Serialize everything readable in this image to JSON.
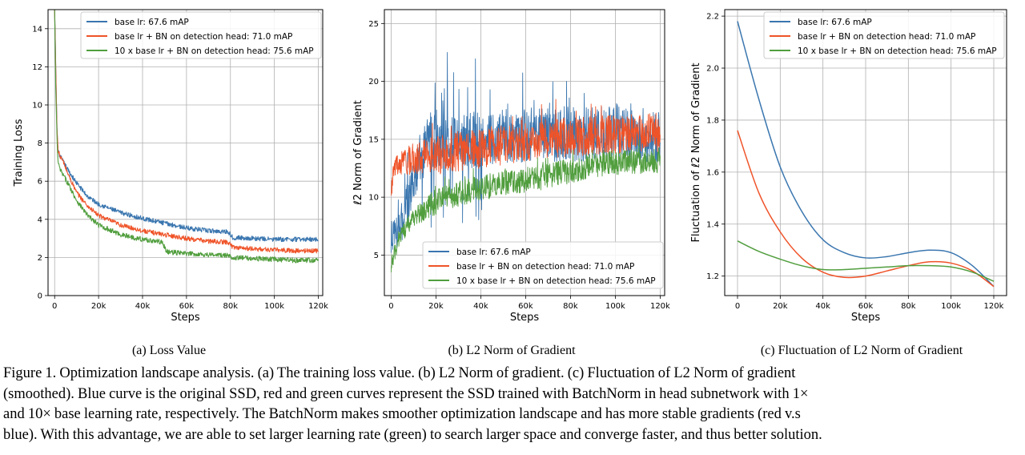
{
  "colors": {
    "blue": "#3a76af",
    "red": "#ef5328",
    "green": "#519e3e",
    "grid": "#b0b0b0"
  },
  "chart_data": [
    {
      "type": "line",
      "subcaption": "(a)  Loss Value",
      "xlabel": "Steps",
      "ylabel": "Training  Loss",
      "xlim": [
        -3000,
        122000
      ],
      "ylim": [
        0,
        15
      ],
      "xticks": [
        0,
        20000,
        40000,
        60000,
        80000,
        100000,
        120000
      ],
      "xtick_labels": [
        "0",
        "20k",
        "40k",
        "60k",
        "80k",
        "100k",
        "120k"
      ],
      "yticks": [
        0,
        2,
        4,
        6,
        8,
        10,
        12,
        14
      ],
      "ytick_labels": [
        "0",
        "2",
        "4",
        "6",
        "8",
        "10",
        "12",
        "14"
      ],
      "grid": true,
      "legend_position": "top-right",
      "series": [
        {
          "name": "base lr:  67.6 mAP",
          "color": "blue",
          "x": [
            0,
            500,
            1000,
            1500,
            2500,
            4000,
            6000,
            10000,
            15000,
            20000,
            30000,
            40000,
            50000,
            60000,
            70000,
            79000,
            81000,
            90000,
            100000,
            110000,
            120000
          ],
          "y": [
            15,
            12,
            9,
            7.6,
            7.3,
            7.0,
            6.6,
            5.9,
            5.2,
            4.8,
            4.35,
            4.05,
            3.8,
            3.55,
            3.4,
            3.35,
            3.05,
            3.0,
            2.95,
            2.95,
            2.95
          ],
          "noise": 0.12
        },
        {
          "name": "base lr + BN on detection head:  71.0 mAP",
          "color": "red",
          "x": [
            0,
            500,
            1000,
            1500,
            2500,
            4000,
            6000,
            10000,
            15000,
            20000,
            30000,
            40000,
            50000,
            60000,
            70000,
            79000,
            81000,
            90000,
            100000,
            110000,
            120000
          ],
          "y": [
            15,
            12,
            9,
            7.6,
            7.3,
            7.0,
            6.4,
            5.4,
            4.7,
            4.2,
            3.7,
            3.4,
            3.2,
            3.0,
            2.85,
            2.8,
            2.55,
            2.45,
            2.4,
            2.35,
            2.35
          ],
          "noise": 0.12
        },
        {
          "name": "10 x base lr + BN on detection head:  75.6 mAP",
          "color": "green",
          "x": [
            0,
            500,
            1000,
            1500,
            2500,
            4000,
            6000,
            10000,
            15000,
            20000,
            30000,
            40000,
            49000,
            51000,
            60000,
            70000,
            79000,
            81000,
            90000,
            100000,
            110000,
            120000
          ],
          "y": [
            15,
            11,
            8.5,
            7.0,
            6.6,
            6.3,
            5.9,
            5.0,
            4.2,
            3.7,
            3.2,
            2.95,
            2.8,
            2.3,
            2.2,
            2.15,
            2.1,
            2.0,
            1.95,
            1.9,
            1.85,
            1.85
          ],
          "noise": 0.13
        }
      ]
    },
    {
      "type": "line",
      "subcaption": "(b)  L2 Norm of Gradient",
      "xlabel": "Steps",
      "ylabel": "ℓ2  Norm  of  Gradient",
      "xlim": [
        -3000,
        122000
      ],
      "ylim": [
        1.5,
        26.2
      ],
      "xticks": [
        0,
        20000,
        40000,
        60000,
        80000,
        100000,
        120000
      ],
      "xtick_labels": [
        "0",
        "20k",
        "40k",
        "60k",
        "80k",
        "100k",
        "120k"
      ],
      "yticks": [
        5,
        10,
        15,
        20,
        25
      ],
      "ytick_labels": [
        "5",
        "10",
        "15",
        "20",
        "25"
      ],
      "grid": true,
      "legend_position": "bottom-right",
      "series": [
        {
          "name": "base lr:  67.6 mAP",
          "color": "blue",
          "x": [
            0,
            2000,
            5000,
            8000,
            12000,
            16000,
            20000,
            30000,
            40000,
            50000,
            60000,
            70000,
            80000,
            90000,
            100000,
            110000,
            120000
          ],
          "y": [
            6.5,
            7,
            8,
            10,
            12.5,
            14.5,
            15,
            15,
            15,
            15.2,
            15.3,
            15.4,
            15.5,
            15.5,
            15.5,
            15.4,
            15.3
          ],
          "noise": 2.4
        },
        {
          "name": "base lr + BN on detection head:  71.0 mAP",
          "color": "red",
          "x": [
            0,
            2000,
            5000,
            10000,
            20000,
            30000,
            40000,
            50000,
            60000,
            70000,
            80000,
            90000,
            100000,
            110000,
            120000
          ],
          "y": [
            11,
            12.5,
            13,
            13.3,
            13.6,
            13.9,
            14.2,
            14.5,
            14.8,
            15,
            15.2,
            15.3,
            15.4,
            15.5,
            15.6
          ],
          "noise": 1.7
        },
        {
          "name": "10 x base lr + BN on detection head:  75.6 mAP",
          "color": "green",
          "x": [
            0,
            2000,
            4000,
            7000,
            10000,
            15000,
            20000,
            30000,
            40000,
            50000,
            60000,
            70000,
            80000,
            90000,
            100000,
            110000,
            120000
          ],
          "y": [
            4,
            5.5,
            6.5,
            7.5,
            8.2,
            9,
            9.6,
            10.3,
            10.8,
            11.2,
            11.5,
            11.8,
            12.3,
            12.8,
            13,
            13.1,
            13.2
          ],
          "noise": 1.1
        }
      ]
    },
    {
      "type": "line",
      "subcaption": "(c)  Fluctuation of L2 Norm of Gradient",
      "xlabel": "Steps",
      "ylabel": "Fluctuation of ℓ2 Norm of Gradient",
      "xlim": [
        -6000,
        126000
      ],
      "ylim": [
        1.125,
        2.225
      ],
      "xticks": [
        0,
        20000,
        40000,
        60000,
        80000,
        100000,
        120000
      ],
      "xtick_labels": [
        "0",
        "20k",
        "40k",
        "60k",
        "80k",
        "100k",
        "120k"
      ],
      "yticks": [
        1.2,
        1.4,
        1.6,
        1.8,
        2.0,
        2.2
      ],
      "ytick_labels": [
        "1.2",
        "1.4",
        "1.6",
        "1.8",
        "2.0",
        "2.2"
      ],
      "grid": true,
      "legend_position": "top-right",
      "series": [
        {
          "name": "base lr:  67.6 mAP",
          "color": "blue",
          "x": [
            0,
            10000,
            20000,
            30000,
            40000,
            50000,
            60000,
            70000,
            80000,
            90000,
            100000,
            110000,
            120000
          ],
          "y": [
            2.18,
            1.88,
            1.62,
            1.45,
            1.34,
            1.29,
            1.27,
            1.275,
            1.29,
            1.3,
            1.29,
            1.24,
            1.16
          ]
        },
        {
          "name": "base lr + BN on detection head:  71.0 mAP",
          "color": "red",
          "x": [
            0,
            10000,
            20000,
            30000,
            40000,
            50000,
            60000,
            70000,
            80000,
            90000,
            100000,
            110000,
            120000
          ],
          "y": [
            1.76,
            1.52,
            1.37,
            1.27,
            1.215,
            1.195,
            1.2,
            1.22,
            1.24,
            1.255,
            1.25,
            1.22,
            1.16
          ]
        },
        {
          "name": "10 x base lr + BN on detection head:  75.6 mAP",
          "color": "green",
          "x": [
            0,
            10000,
            20000,
            30000,
            40000,
            50000,
            60000,
            70000,
            80000,
            90000,
            100000,
            110000,
            120000
          ],
          "y": [
            1.335,
            1.295,
            1.265,
            1.24,
            1.225,
            1.225,
            1.23,
            1.235,
            1.24,
            1.24,
            1.235,
            1.215,
            1.18
          ]
        }
      ]
    }
  ],
  "caption": {
    "line1": "Figure 1. Optimization landscape analysis. (a) The training loss value. (b) L2 Norm of gradient. (c) Fluctuation of L2 Norm of gradient",
    "line2": "(smoothed). Blue curve is the original SSD, red and green curves represent the SSD trained with BatchNorm in head subnetwork with 1×",
    "line3": "and 10× base learning rate, respectively. The BatchNorm makes smoother optimization landscape and has more stable gradients (red v.s",
    "line4": "blue). With this advantage, we are able to set larger learning rate (green) to search larger space and converge faster, and thus better solution."
  }
}
